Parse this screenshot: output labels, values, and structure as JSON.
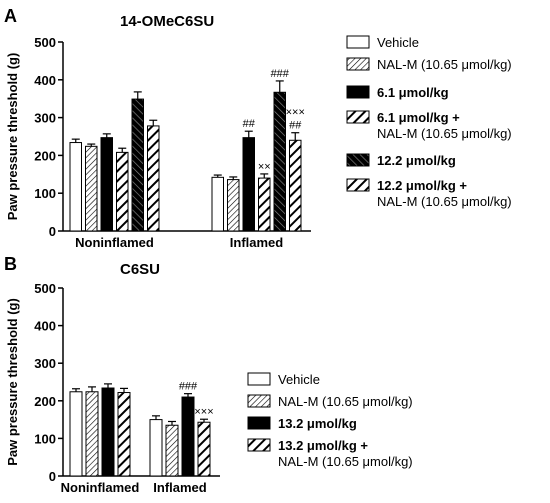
{
  "chart_data": [
    {
      "panel_label": "A",
      "type": "bar",
      "title": "14-OMeC6SU",
      "ylabel": "Paw pressure threshold (g)",
      "xlabel": "",
      "ylim": [
        0,
        500
      ],
      "yticks": [
        "0",
        "100",
        "200",
        "300",
        "400",
        "500"
      ],
      "groups": [
        "Noninflamed",
        "Inflamed"
      ],
      "grid": false,
      "legend_position": "right",
      "series": [
        {
          "name": "Vehicle",
          "name_bold": false,
          "name_line2": "",
          "pattern": "white",
          "values": [
            234,
            142
          ],
          "errors": [
            9,
            6
          ],
          "annotations": [
            "",
            ""
          ]
        },
        {
          "name": "NAL-M (10.65 μmol/kg)",
          "name_bold": false,
          "name_line2": "",
          "pattern": "hatch-thin",
          "values": [
            224,
            136
          ],
          "errors": [
            6,
            7
          ],
          "annotations": [
            "",
            ""
          ]
        },
        {
          "name": "6.1 μmol/kg",
          "name_bold": true,
          "name_line2": "",
          "pattern": "black",
          "values": [
            247,
            247
          ],
          "errors": [
            10,
            17
          ],
          "annotations": [
            "",
            "##"
          ]
        },
        {
          "name": "6.1 μmol/kg +",
          "name_bold": true,
          "name_line2": "NAL-M (10.65 μmol/kg)",
          "pattern": "hatch-thick",
          "values": [
            208,
            140
          ],
          "errors": [
            11,
            11
          ],
          "annotations": [
            "",
            "××"
          ]
        },
        {
          "name": "12.2 μmol/kg",
          "name_bold": true,
          "name_line2": "",
          "pattern": "hatch-dark",
          "values": [
            349,
            367
          ],
          "errors": [
            19,
            30
          ],
          "annotations": [
            "",
            "###"
          ]
        },
        {
          "name": "12.2 μmol/kg +",
          "name_bold": true,
          "name_line2": "NAL-M (10.65 μmol/kg)",
          "pattern": "hatch-thick",
          "values": [
            278,
            240
          ],
          "errors": [
            15,
            20
          ],
          "annotations": [
            "",
            "×××|##"
          ]
        }
      ]
    },
    {
      "panel_label": "B",
      "type": "bar",
      "title": "C6SU",
      "ylabel": "Paw pressure threshold (g)",
      "xlabel": "",
      "ylim": [
        0,
        500
      ],
      "yticks": [
        "0",
        "100",
        "200",
        "300",
        "400",
        "500"
      ],
      "groups": [
        "Noninflamed",
        "Inflamed"
      ],
      "grid": false,
      "legend_position": "right",
      "series": [
        {
          "name": "Vehicle",
          "name_bold": false,
          "name_line2": "",
          "pattern": "white",
          "values": [
            224,
            150
          ],
          "errors": [
            8,
            10
          ],
          "annotations": [
            "",
            ""
          ]
        },
        {
          "name": "NAL-M (10.65 μmol/kg)",
          "name_bold": false,
          "name_line2": "",
          "pattern": "hatch-thin",
          "values": [
            224,
            135
          ],
          "errors": [
            13,
            10
          ],
          "annotations": [
            "",
            ""
          ]
        },
        {
          "name": "13.2 μmol/kg",
          "name_bold": true,
          "name_line2": "",
          "pattern": "black",
          "values": [
            234,
            210
          ],
          "errors": [
            11,
            9
          ],
          "annotations": [
            "",
            "###"
          ]
        },
        {
          "name": "13.2 μmol/kg +",
          "name_bold": true,
          "name_line2": "NAL-M (10.65 μmol/kg)",
          "pattern": "hatch-thick",
          "values": [
            222,
            143
          ],
          "errors": [
            11,
            8
          ],
          "annotations": [
            "",
            "×××"
          ]
        }
      ]
    }
  ]
}
